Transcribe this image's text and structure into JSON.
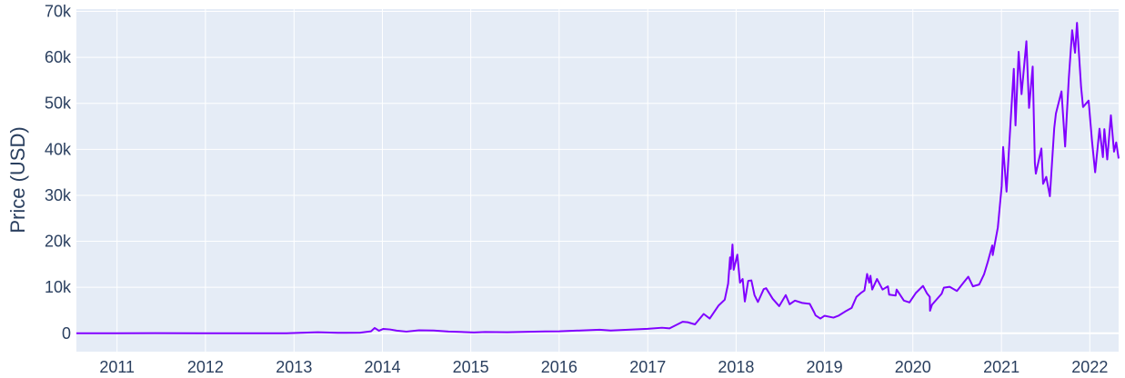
{
  "chart_data": {
    "type": "line",
    "title": "",
    "xlabel": "",
    "ylabel": "Price (USD)",
    "xlim": [
      "2010-07-17",
      "2022-04-30"
    ],
    "ylim": [
      -4000,
      70500
    ],
    "x_ticks": [
      "2011",
      "2012",
      "2013",
      "2014",
      "2015",
      "2016",
      "2017",
      "2018",
      "2019",
      "2020",
      "2021",
      "2022"
    ],
    "y_ticks": [
      {
        "value": 0,
        "label": "0"
      },
      {
        "value": 10000,
        "label": "10k"
      },
      {
        "value": 20000,
        "label": "20k"
      },
      {
        "value": 30000,
        "label": "30k"
      },
      {
        "value": 40000,
        "label": "40k"
      },
      {
        "value": 50000,
        "label": "50k"
      },
      {
        "value": 60000,
        "label": "60k"
      },
      {
        "value": 70000,
        "label": "70k"
      }
    ],
    "grid": true,
    "colors": {
      "line": "#8000ff",
      "plot_bg": "#e5ecf6",
      "grid": "#ffffff",
      "text": "#2a3f5f"
    },
    "series": [
      {
        "name": "",
        "points": [
          [
            "2010-07-17",
            0.05
          ],
          [
            "2011-01-01",
            0.3
          ],
          [
            "2011-06-08",
            30
          ],
          [
            "2011-12-01",
            3
          ],
          [
            "2012-06-01",
            6
          ],
          [
            "2012-12-01",
            13
          ],
          [
            "2013-04-09",
            230
          ],
          [
            "2013-07-01",
            90
          ],
          [
            "2013-10-01",
            130
          ],
          [
            "2013-11-15",
            420
          ],
          [
            "2013-11-30",
            1150
          ],
          [
            "2013-12-18",
            550
          ],
          [
            "2014-01-05",
            950
          ],
          [
            "2014-02-01",
            830
          ],
          [
            "2014-03-01",
            560
          ],
          [
            "2014-04-10",
            360
          ],
          [
            "2014-06-01",
            650
          ],
          [
            "2014-08-01",
            590
          ],
          [
            "2014-10-01",
            380
          ],
          [
            "2015-01-14",
            180
          ],
          [
            "2015-03-01",
            270
          ],
          [
            "2015-06-01",
            230
          ],
          [
            "2015-11-04",
            400
          ],
          [
            "2016-01-01",
            430
          ],
          [
            "2016-06-16",
            760
          ],
          [
            "2016-08-01",
            600
          ],
          [
            "2016-12-31",
            960
          ],
          [
            "2017-03-01",
            1200
          ],
          [
            "2017-04-01",
            1070
          ],
          [
            "2017-05-25",
            2500
          ],
          [
            "2017-06-15",
            2400
          ],
          [
            "2017-07-15",
            1930
          ],
          [
            "2017-08-20",
            4200
          ],
          [
            "2017-09-14",
            3200
          ],
          [
            "2017-10-20",
            6000
          ],
          [
            "2017-11-15",
            7300
          ],
          [
            "2017-11-29",
            10800
          ],
          [
            "2017-12-07",
            16500
          ],
          [
            "2017-12-10",
            14000
          ],
          [
            "2017-12-17",
            19300
          ],
          [
            "2017-12-22",
            13800
          ],
          [
            "2018-01-06",
            17100
          ],
          [
            "2018-01-17",
            11000
          ],
          [
            "2018-01-28",
            11800
          ],
          [
            "2018-02-06",
            6900
          ],
          [
            "2018-02-20",
            11400
          ],
          [
            "2018-03-05",
            11500
          ],
          [
            "2018-03-18",
            8300
          ],
          [
            "2018-04-01",
            6800
          ],
          [
            "2018-04-25",
            9600
          ],
          [
            "2018-05-05",
            9800
          ],
          [
            "2018-06-01",
            7500
          ],
          [
            "2018-06-28",
            5900
          ],
          [
            "2018-07-25",
            8300
          ],
          [
            "2018-08-10",
            6300
          ],
          [
            "2018-09-01",
            7100
          ],
          [
            "2018-10-01",
            6600
          ],
          [
            "2018-11-01",
            6400
          ],
          [
            "2018-11-19",
            4600
          ],
          [
            "2018-11-25",
            3900
          ],
          [
            "2018-12-15",
            3200
          ],
          [
            "2019-01-01",
            3800
          ],
          [
            "2019-02-07",
            3400
          ],
          [
            "2019-03-01",
            3850
          ],
          [
            "2019-04-02",
            4900
          ],
          [
            "2019-04-23",
            5500
          ],
          [
            "2019-05-13",
            7900
          ],
          [
            "2019-05-30",
            8700
          ],
          [
            "2019-06-15",
            9300
          ],
          [
            "2019-06-26",
            12900
          ],
          [
            "2019-07-05",
            11000
          ],
          [
            "2019-07-10",
            12500
          ],
          [
            "2019-07-17",
            9500
          ],
          [
            "2019-08-06",
            11800
          ],
          [
            "2019-08-29",
            9500
          ],
          [
            "2019-09-20",
            10200
          ],
          [
            "2019-09-25",
            8400
          ],
          [
            "2019-10-22",
            8200
          ],
          [
            "2019-10-26",
            9500
          ],
          [
            "2019-11-25",
            7100
          ],
          [
            "2019-12-18",
            6700
          ],
          [
            "2020-01-14",
            8800
          ],
          [
            "2020-02-12",
            10300
          ],
          [
            "2020-02-28",
            8700
          ],
          [
            "2020-03-11",
            7900
          ],
          [
            "2020-03-12",
            4900
          ],
          [
            "2020-03-20",
            6200
          ],
          [
            "2020-04-29",
            8600
          ],
          [
            "2020-05-08",
            9900
          ],
          [
            "2020-06-01",
            10100
          ],
          [
            "2020-07-01",
            9200
          ],
          [
            "2020-07-28",
            11000
          ],
          [
            "2020-08-17",
            12300
          ],
          [
            "2020-09-05",
            10200
          ],
          [
            "2020-10-01",
            10600
          ],
          [
            "2020-10-21",
            12800
          ],
          [
            "2020-11-06",
            15600
          ],
          [
            "2020-11-24",
            19100
          ],
          [
            "2020-11-26",
            17000
          ],
          [
            "2020-12-17",
            23000
          ],
          [
            "2021-01-02",
            32000
          ],
          [
            "2021-01-08",
            40500
          ],
          [
            "2021-01-22",
            30800
          ],
          [
            "2021-02-08",
            46200
          ],
          [
            "2021-02-21",
            57500
          ],
          [
            "2021-02-28",
            45200
          ],
          [
            "2021-03-13",
            61200
          ],
          [
            "2021-03-25",
            52000
          ],
          [
            "2021-04-14",
            63500
          ],
          [
            "2021-04-25",
            49000
          ],
          [
            "2021-05-10",
            58000
          ],
          [
            "2021-05-19",
            37000
          ],
          [
            "2021-05-23",
            34700
          ],
          [
            "2021-06-15",
            40200
          ],
          [
            "2021-06-22",
            32500
          ],
          [
            "2021-07-05",
            34000
          ],
          [
            "2021-07-20",
            29800
          ],
          [
            "2021-08-07",
            44600
          ],
          [
            "2021-08-14",
            47800
          ],
          [
            "2021-09-06",
            52600
          ],
          [
            "2021-09-21",
            40600
          ],
          [
            "2021-10-06",
            55300
          ],
          [
            "2021-10-20",
            65900
          ],
          [
            "2021-11-01",
            61000
          ],
          [
            "2021-11-09",
            67500
          ],
          [
            "2021-11-26",
            53500
          ],
          [
            "2021-12-04",
            49200
          ],
          [
            "2021-12-27",
            50600
          ],
          [
            "2022-01-10",
            41800
          ],
          [
            "2022-01-23",
            35000
          ],
          [
            "2022-02-10",
            44500
          ],
          [
            "2022-02-24",
            38300
          ],
          [
            "2022-03-02",
            44400
          ],
          [
            "2022-03-14",
            37800
          ],
          [
            "2022-03-29",
            47400
          ],
          [
            "2022-04-11",
            39500
          ],
          [
            "2022-04-20",
            41500
          ],
          [
            "2022-04-30",
            38000
          ]
        ]
      }
    ]
  }
}
